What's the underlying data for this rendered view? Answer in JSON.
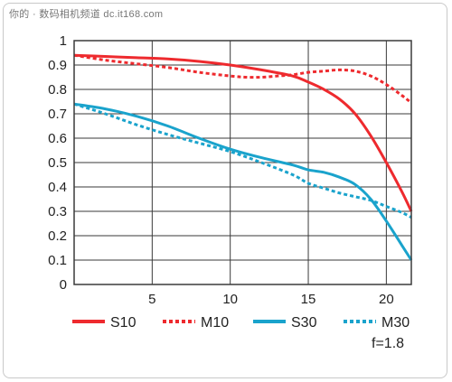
{
  "watermark": "你的 · 数码相机频道 dc.it168.com",
  "note": "f=1.8",
  "colors": {
    "red": "#ee2a2e",
    "blue": "#1aa3cc",
    "axis": "#3a3a3a"
  },
  "chart_data": {
    "type": "line",
    "xlim": [
      0,
      21.6
    ],
    "ylim": [
      0,
      1
    ],
    "xticks": [
      5,
      10,
      15,
      20
    ],
    "xtick_labels": [
      "5",
      "10",
      "15",
      "20"
    ],
    "yticks": [
      0,
      0.1,
      0.2,
      0.3,
      0.4,
      0.5,
      0.6,
      0.7,
      0.8,
      0.9,
      1
    ],
    "ytick_labels": [
      "0",
      "0.1",
      "0.2",
      "0.3",
      "0.4",
      "0.5",
      "0.6",
      "0.7",
      "0.8",
      "0.9",
      "1"
    ],
    "grid": true,
    "legend_position": "bottom",
    "series": [
      {
        "name": "S10",
        "color": "#ee2a2e",
        "dash": "solid",
        "x": [
          0,
          2,
          4,
          6,
          8,
          10,
          12,
          14,
          15,
          16,
          17,
          18,
          19,
          20,
          21,
          21.6
        ],
        "y": [
          0.94,
          0.935,
          0.93,
          0.925,
          0.915,
          0.9,
          0.88,
          0.855,
          0.83,
          0.8,
          0.76,
          0.7,
          0.61,
          0.5,
          0.38,
          0.3
        ]
      },
      {
        "name": "M10",
        "color": "#ee2a2e",
        "dash": "dashed",
        "x": [
          0,
          2,
          4,
          6,
          8,
          10,
          11,
          12,
          13,
          14,
          15,
          16,
          17,
          18,
          19,
          20,
          21,
          21.6
        ],
        "y": [
          0.94,
          0.92,
          0.905,
          0.89,
          0.87,
          0.855,
          0.85,
          0.85,
          0.855,
          0.86,
          0.87,
          0.875,
          0.88,
          0.875,
          0.855,
          0.82,
          0.775,
          0.745
        ]
      },
      {
        "name": "S30",
        "color": "#1aa3cc",
        "dash": "solid",
        "x": [
          0,
          2,
          4,
          6,
          8,
          10,
          12,
          14,
          15,
          16,
          17,
          18,
          19,
          20,
          21,
          21.6
        ],
        "y": [
          0.74,
          0.72,
          0.69,
          0.65,
          0.6,
          0.555,
          0.52,
          0.49,
          0.47,
          0.46,
          0.44,
          0.41,
          0.35,
          0.26,
          0.16,
          0.1
        ]
      },
      {
        "name": "M30",
        "color": "#1aa3cc",
        "dash": "dashed",
        "x": [
          0,
          2,
          4,
          6,
          8,
          10,
          12,
          14,
          15,
          16,
          17,
          18,
          19,
          20,
          21,
          21.6
        ],
        "y": [
          0.74,
          0.7,
          0.655,
          0.615,
          0.58,
          0.545,
          0.5,
          0.45,
          0.415,
          0.395,
          0.375,
          0.36,
          0.345,
          0.32,
          0.295,
          0.275
        ]
      }
    ]
  }
}
